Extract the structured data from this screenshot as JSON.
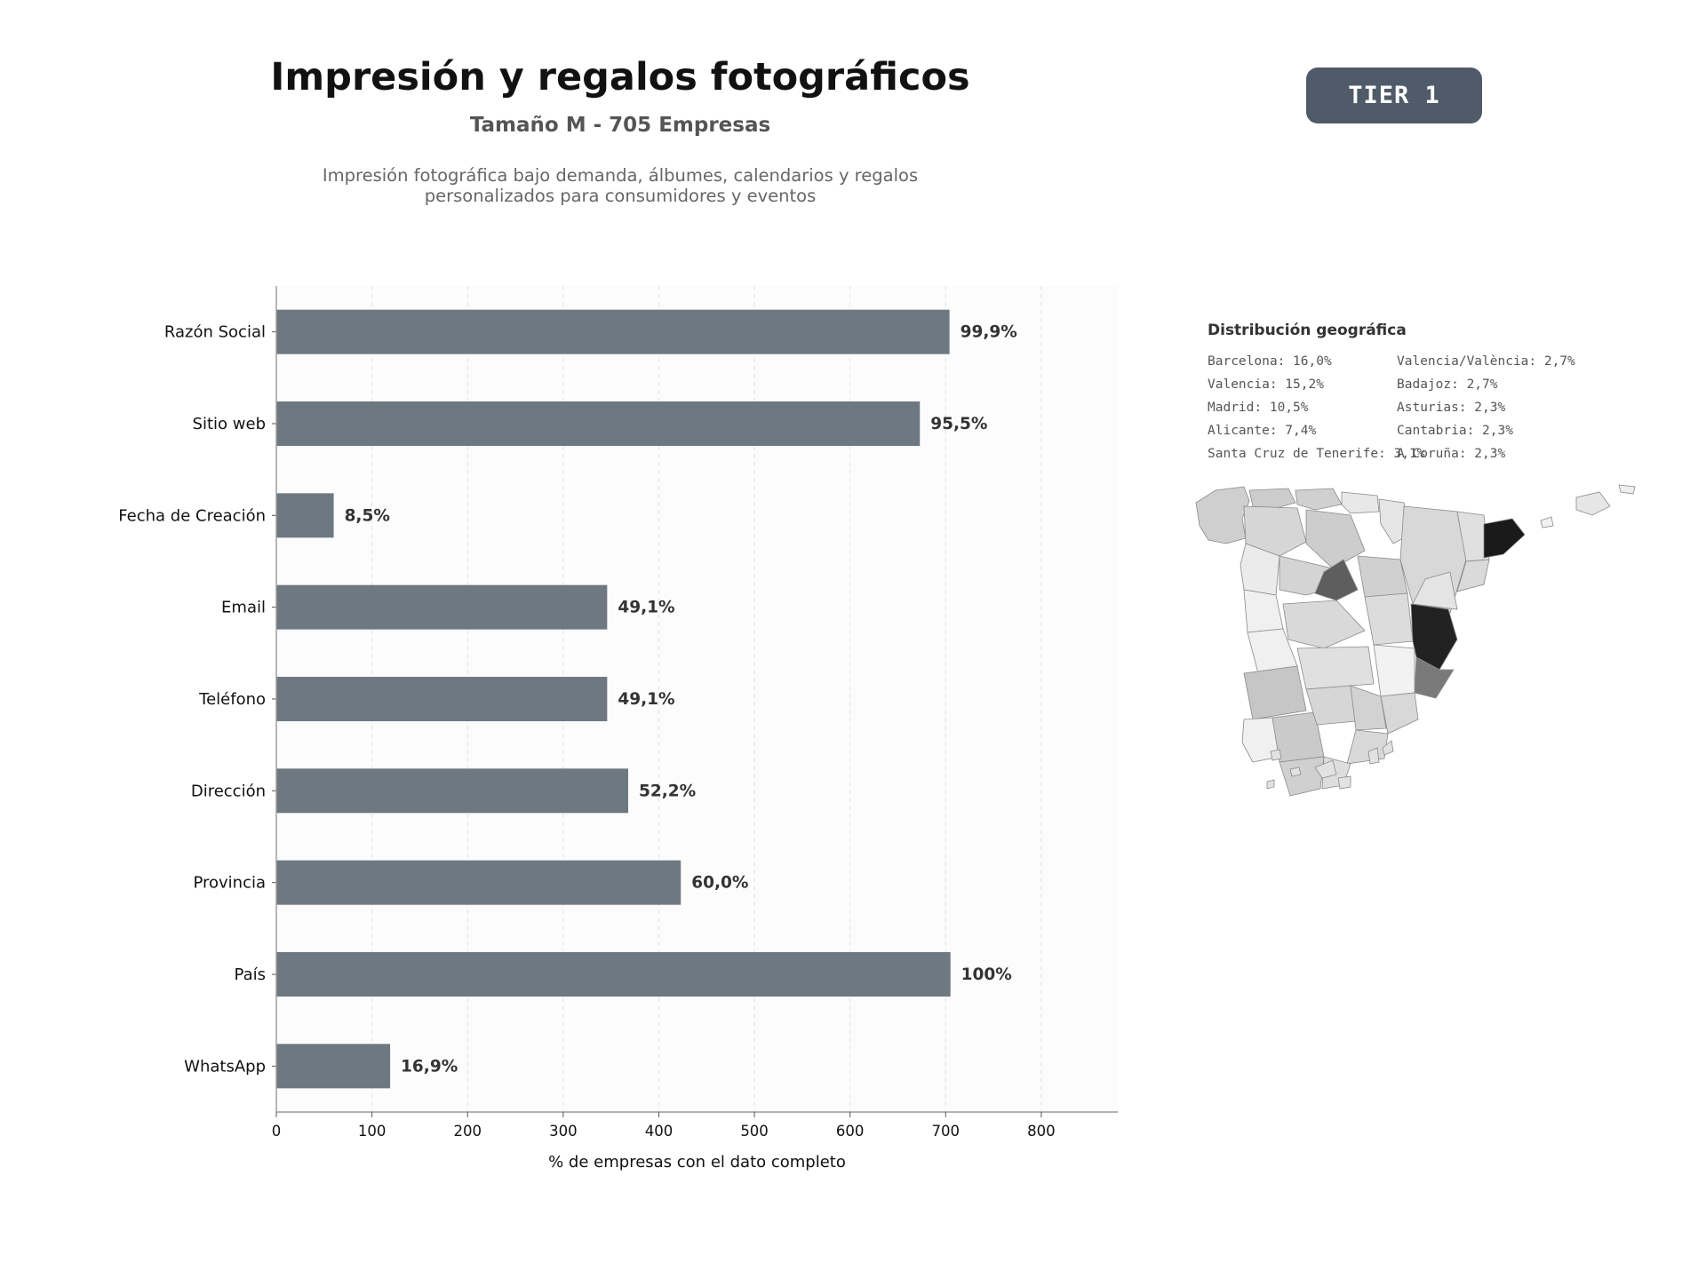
{
  "header": {
    "title": "Impresión y regalos fotográficos",
    "subtitle": "Tamaño M - 705 Empresas",
    "description_line1": "Impresión fotográfica bajo demanda, álbumes, calendarios y regalos",
    "description_line2": "personalizados para consumidores y eventos",
    "tier": "TIER 1"
  },
  "geo": {
    "title": "Distribución geográfica",
    "left_column": [
      "Barcelona: 16,0%",
      "Valencia: 15,2%",
      "Madrid: 10,5%",
      "Alicante: 7,4%",
      "Santa Cruz de Tenerife: 3,1%"
    ],
    "right_column": [
      "Valencia/València: 2,7%",
      "Badajoz: 2,7%",
      "Asturias: 2,3%",
      "Cantabria: 2,3%",
      "A Coruña: 2,3%"
    ],
    "map_shades": {
      "barcelona": "#1a1a1a",
      "valencia": "#222222",
      "madrid": "#5e5e5e",
      "alicante": "#7a7a7a",
      "default": "#d4d4d4"
    }
  },
  "chart_data": {
    "type": "bar",
    "orientation": "horizontal",
    "categories": [
      "Razón Social",
      "Sitio web",
      "Fecha de Creación",
      "Email",
      "Teléfono",
      "Dirección",
      "Provincia",
      "País",
      "WhatsApp"
    ],
    "values": [
      704,
      673,
      60,
      346,
      346,
      368,
      423,
      705,
      119
    ],
    "value_labels": [
      "99,9%",
      "95,5%",
      "8,5%",
      "49,1%",
      "49,1%",
      "52,2%",
      "60,0%",
      "100%",
      "16,9%"
    ],
    "xlabel": "% de empresas con el dato completo",
    "xlim": [
      0,
      880
    ],
    "xticks": [
      0,
      100,
      200,
      300,
      400,
      500,
      600,
      700,
      800
    ],
    "grid": "vertical dashed",
    "colors": {
      "bar": "#6e7881",
      "label": "#333333"
    }
  }
}
